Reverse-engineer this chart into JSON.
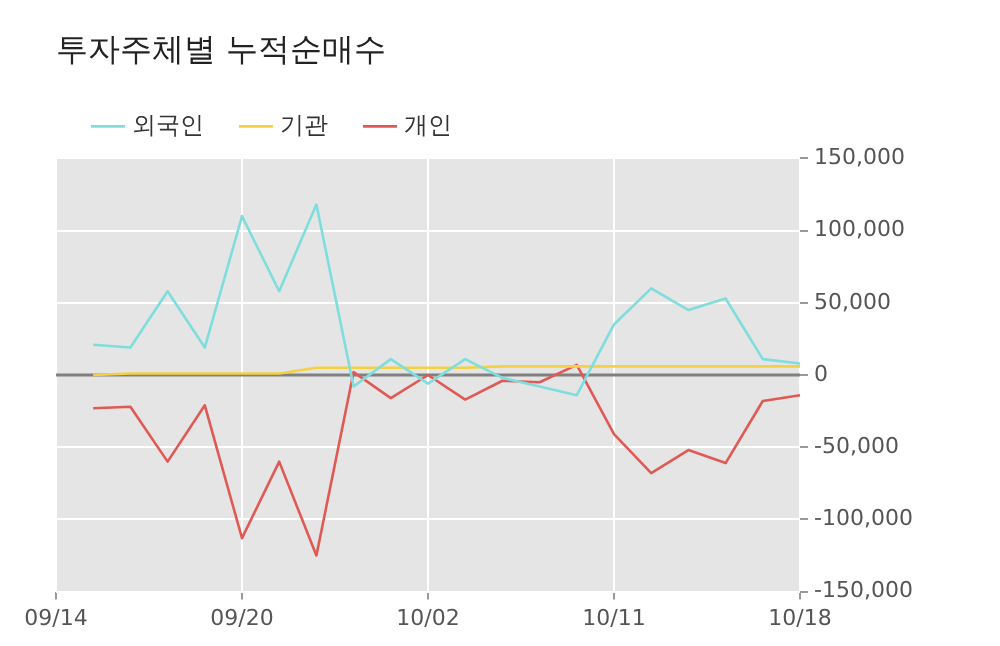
{
  "chart_data": {
    "type": "line",
    "title": "투자주체별 누적순매수",
    "categories": [
      "09/14",
      null,
      null,
      null,
      null,
      "09/20",
      null,
      null,
      null,
      null,
      "10/02",
      null,
      null,
      null,
      null,
      "10/11",
      null,
      null,
      null,
      null,
      "10/18"
    ],
    "series": [
      {
        "name": "외국인",
        "color": "#7fdedd",
        "values": [
          null,
          21000,
          19000,
          58000,
          19000,
          110000,
          58000,
          118000,
          -8000,
          11000,
          -6000,
          11000,
          -2000,
          -8000,
          -14000,
          35000,
          60000,
          45000,
          53000,
          11000,
          8000
        ]
      },
      {
        "name": "기관",
        "color": "#f5d142",
        "values": [
          null,
          0,
          1000,
          1000,
          1000,
          1000,
          1000,
          5000,
          5000,
          5000,
          5000,
          5000,
          6000,
          6000,
          6000,
          6000,
          6000,
          6000,
          6000,
          6000,
          6000
        ]
      },
      {
        "name": "개인",
        "color": "#e05a55",
        "values": [
          null,
          -23000,
          -22000,
          -60000,
          -21000,
          -113000,
          -60000,
          -125000,
          2000,
          -16000,
          0,
          -17000,
          -4000,
          -5000,
          7000,
          -41000,
          -68000,
          -52000,
          -61000,
          -18000,
          -14000
        ]
      }
    ],
    "ylim": [
      -150000,
      150000
    ],
    "yticks": [
      {
        "value": -150000,
        "label": "-150,000"
      },
      {
        "value": -100000,
        "label": "-100,000"
      },
      {
        "value": -50000,
        "label": "-50,000"
      },
      0,
      {
        "value": 50000,
        "label": "50,000"
      },
      {
        "value": 100000,
        "label": "100,000"
      },
      {
        "value": 150000,
        "label": "150,000"
      }
    ],
    "ref_lines": [
      {
        "axis": "y",
        "value": 0,
        "color": "#808080"
      }
    ],
    "grid": true,
    "legend": "top left",
    "marker": "none",
    "line_style": "solid"
  }
}
